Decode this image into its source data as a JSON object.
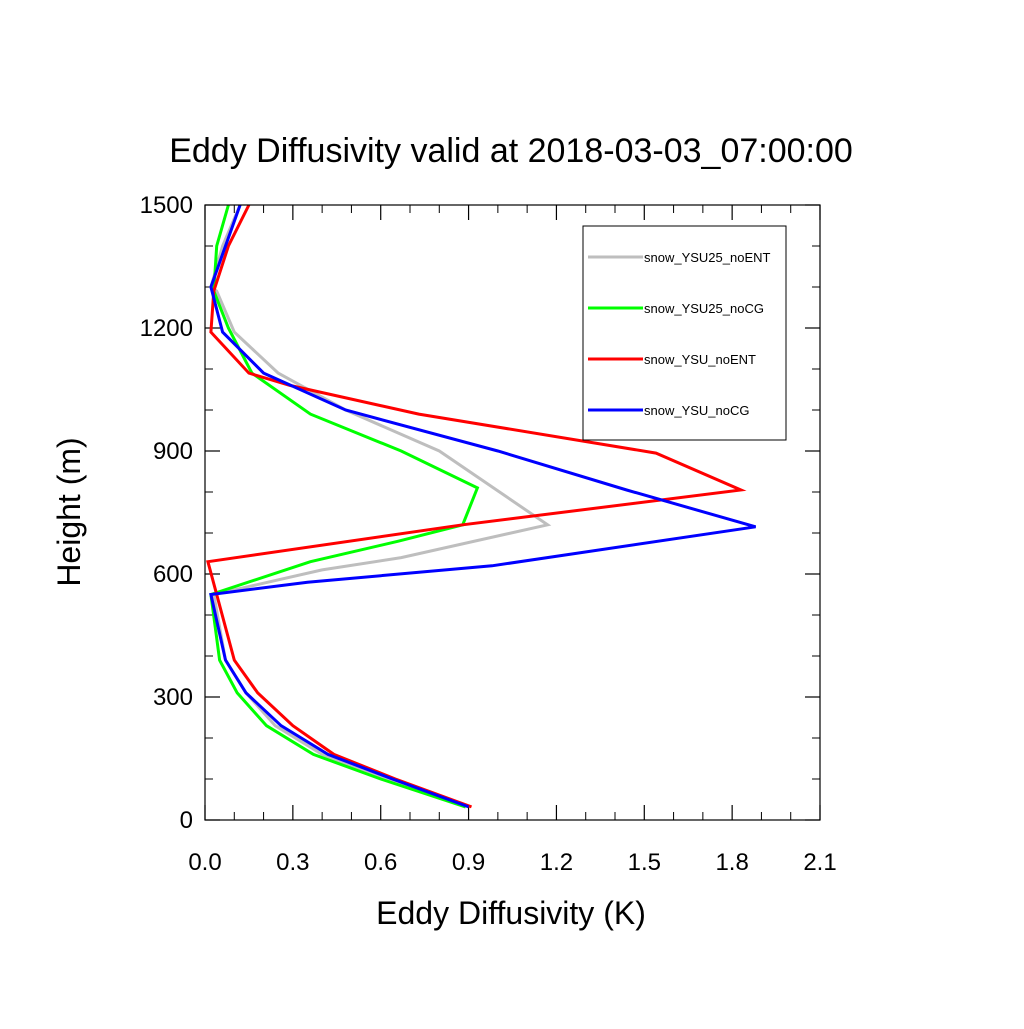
{
  "chart_data": {
    "type": "line",
    "title": "Eddy Diffusivity valid at 2018-03-03_07:00:00",
    "xlabel": "Eddy Diffusivity (K)",
    "ylabel": "Height (m)",
    "xlim": [
      0,
      2.1
    ],
    "ylim": [
      0,
      1500
    ],
    "xticks": [
      0.0,
      0.3,
      0.6,
      0.9,
      1.2,
      1.5,
      1.8,
      2.1
    ],
    "xtick_labels": [
      "0.0",
      "0.3",
      "0.6",
      "0.9",
      "1.2",
      "1.5",
      "1.8",
      "2.1"
    ],
    "yticks": [
      0,
      300,
      600,
      900,
      1200,
      1500
    ],
    "ytick_labels": [
      "0",
      "300",
      "600",
      "900",
      "1200",
      "1500"
    ],
    "grid": false,
    "legend_position": "top-right",
    "series": [
      {
        "name": "snow_YSU25_noENT",
        "color": "#bebebe",
        "x": [
          0.89,
          0.62,
          0.4,
          0.24,
          0.14,
          0.07,
          0.03,
          0.4,
          0.67,
          1.17,
          0.8,
          0.48,
          0.25,
          0.1,
          0.04,
          0.02,
          0.06,
          0.12
        ],
        "y": [
          32,
          100,
          160,
          230,
          310,
          390,
          550,
          610,
          640,
          720,
          900,
          1000,
          1090,
          1190,
          1290,
          1300,
          1400,
          1500
        ]
      },
      {
        "name": "snow_YSU25_noCG",
        "color": "#00ff00",
        "x": [
          0.89,
          0.6,
          0.37,
          0.21,
          0.11,
          0.05,
          0.02,
          0.36,
          0.66,
          0.88,
          0.93,
          0.67,
          0.36,
          0.16,
          0.08,
          0.03,
          0.04,
          0.08
        ],
        "y": [
          32,
          100,
          160,
          230,
          310,
          390,
          550,
          630,
          680,
          720,
          810,
          900,
          990,
          1090,
          1200,
          1290,
          1400,
          1500
        ]
      },
      {
        "name": "snow_YSU_noENT",
        "color": "#ff0000",
        "x": [
          0.91,
          0.65,
          0.44,
          0.3,
          0.18,
          0.1,
          0.04,
          0.01,
          0.88,
          1.83,
          1.54,
          0.73,
          0.29,
          0.15,
          0.02,
          0.03,
          0.08,
          0.15
        ],
        "y": [
          32,
          100,
          160,
          230,
          310,
          390,
          550,
          630,
          720,
          805,
          895,
          990,
          1060,
          1090,
          1190,
          1290,
          1400,
          1500
        ]
      },
      {
        "name": "snow_YSU_noCG",
        "color": "#0000ff",
        "x": [
          0.9,
          0.64,
          0.42,
          0.26,
          0.14,
          0.07,
          0.02,
          0.35,
          0.98,
          1.88,
          1.44,
          1.0,
          0.48,
          0.2,
          0.06,
          0.02,
          0.07,
          0.12
        ],
        "y": [
          32,
          100,
          160,
          230,
          310,
          390,
          550,
          580,
          620,
          715,
          805,
          900,
          1000,
          1090,
          1190,
          1300,
          1400,
          1500
        ]
      }
    ]
  }
}
